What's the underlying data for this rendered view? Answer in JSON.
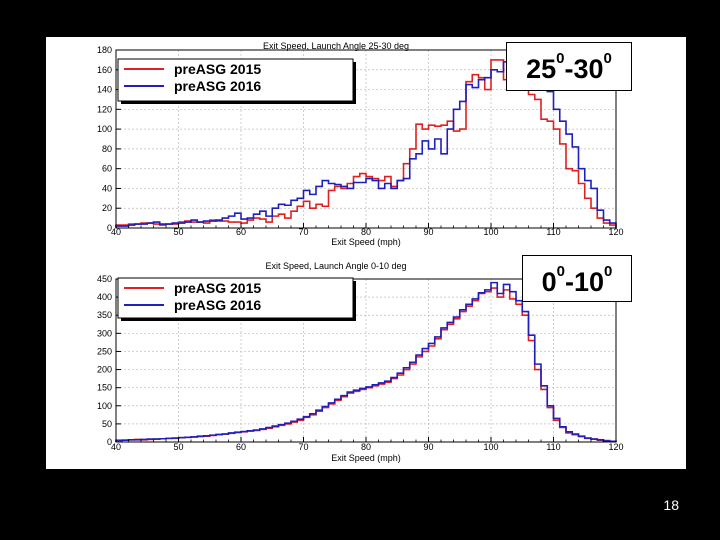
{
  "labels": {
    "top": {
      "a": "25",
      "b": "-30",
      "sup": "0"
    },
    "bottom": {
      "a": "0",
      "b": "-10",
      "sup": "0"
    }
  },
  "slide_number": "18",
  "chart_data": [
    {
      "type": "line",
      "style": "step-histogram",
      "title": "Exit Speed, Launch Angle 25-30 deg",
      "xlabel": "Exit Speed (mph)",
      "ylabel": "",
      "xlim": [
        40,
        120
      ],
      "ylim": [
        0,
        180
      ],
      "xticks": [
        40,
        50,
        60,
        70,
        80,
        90,
        100,
        110,
        120
      ],
      "yticks": [
        0,
        20,
        40,
        60,
        80,
        100,
        120,
        140,
        160,
        180
      ],
      "bin_width": 1,
      "grid": true,
      "legend_position": "top-left",
      "series": [
        {
          "name": "preASG 2015",
          "color": "#e02020",
          "values": [
            3,
            3,
            4,
            4,
            5,
            5,
            4,
            3,
            4,
            4,
            6,
            7,
            6,
            6,
            5,
            8,
            7,
            7,
            6,
            6,
            5,
            8,
            10,
            9,
            6,
            12,
            14,
            10,
            17,
            22,
            27,
            20,
            24,
            22,
            38,
            42,
            40,
            45,
            52,
            55,
            52,
            50,
            48,
            52,
            42,
            48,
            65,
            80,
            105,
            100,
            104,
            103,
            104,
            108,
            98,
            100,
            148,
            155,
            152,
            140,
            170,
            170,
            150,
            168,
            160,
            148,
            135,
            130,
            110,
            108,
            100,
            85,
            60,
            58,
            45,
            30,
            20,
            10,
            5,
            3
          ]
        },
        {
          "name": "preASG 2016",
          "color": "#1f1fbb",
          "values": [
            2,
            2,
            3,
            4,
            4,
            5,
            6,
            4,
            4,
            5,
            5,
            6,
            8,
            6,
            7,
            7,
            8,
            10,
            12,
            15,
            9,
            10,
            14,
            17,
            12,
            20,
            24,
            23,
            28,
            30,
            38,
            34,
            42,
            48,
            45,
            44,
            42,
            40,
            46,
            46,
            50,
            48,
            40,
            45,
            40,
            48,
            50,
            70,
            75,
            88,
            80,
            90,
            75,
            100,
            120,
            128,
            145,
            142,
            150,
            152,
            160,
            158,
            168,
            172,
            168,
            175,
            162,
            170,
            155,
            138,
            120,
            108,
            95,
            82,
            60,
            48,
            40,
            18,
            8,
            5
          ]
        }
      ]
    },
    {
      "type": "line",
      "style": "step-histogram",
      "title": "Exit Speed, Launch Angle 0-10 deg",
      "xlabel": "Exit Speed (mph)",
      "ylabel": "",
      "xlim": [
        40,
        120
      ],
      "ylim": [
        0,
        450
      ],
      "xticks": [
        40,
        50,
        60,
        70,
        80,
        90,
        100,
        110,
        120
      ],
      "yticks": [
        0,
        50,
        100,
        150,
        200,
        250,
        300,
        350,
        400,
        450
      ],
      "bin_width": 1,
      "grid": true,
      "legend_position": "top-left",
      "series": [
        {
          "name": "preASG 2015",
          "color": "#e02020",
          "values": [
            5,
            5,
            6,
            7,
            6,
            7,
            8,
            9,
            10,
            10,
            12,
            13,
            14,
            15,
            16,
            18,
            20,
            22,
            24,
            26,
            28,
            30,
            32,
            35,
            38,
            42,
            46,
            50,
            55,
            60,
            68,
            75,
            85,
            95,
            105,
            115,
            125,
            135,
            140,
            145,
            150,
            155,
            160,
            165,
            175,
            185,
            200,
            215,
            235,
            250,
            265,
            285,
            310,
            325,
            340,
            360,
            375,
            390,
            410,
            415,
            425,
            400,
            420,
            395,
            380,
            350,
            280,
            200,
            145,
            95,
            60,
            40,
            25,
            20,
            15,
            10,
            8,
            5,
            4,
            2
          ]
        },
        {
          "name": "preASG 2016",
          "color": "#1f1fbb",
          "values": [
            4,
            5,
            6,
            6,
            7,
            8,
            8,
            9,
            10,
            11,
            12,
            13,
            14,
            16,
            17,
            19,
            21,
            22,
            25,
            27,
            29,
            31,
            33,
            36,
            40,
            44,
            48,
            52,
            57,
            63,
            70,
            78,
            88,
            98,
            108,
            118,
            128,
            138,
            143,
            148,
            152,
            158,
            163,
            168,
            178,
            190,
            205,
            220,
            240,
            258,
            272,
            290,
            315,
            330,
            345,
            365,
            380,
            395,
            412,
            420,
            440,
            410,
            435,
            415,
            390,
            360,
            295,
            215,
            155,
            100,
            65,
            42,
            28,
            22,
            16,
            11,
            8,
            6,
            3,
            2
          ]
        }
      ]
    }
  ]
}
